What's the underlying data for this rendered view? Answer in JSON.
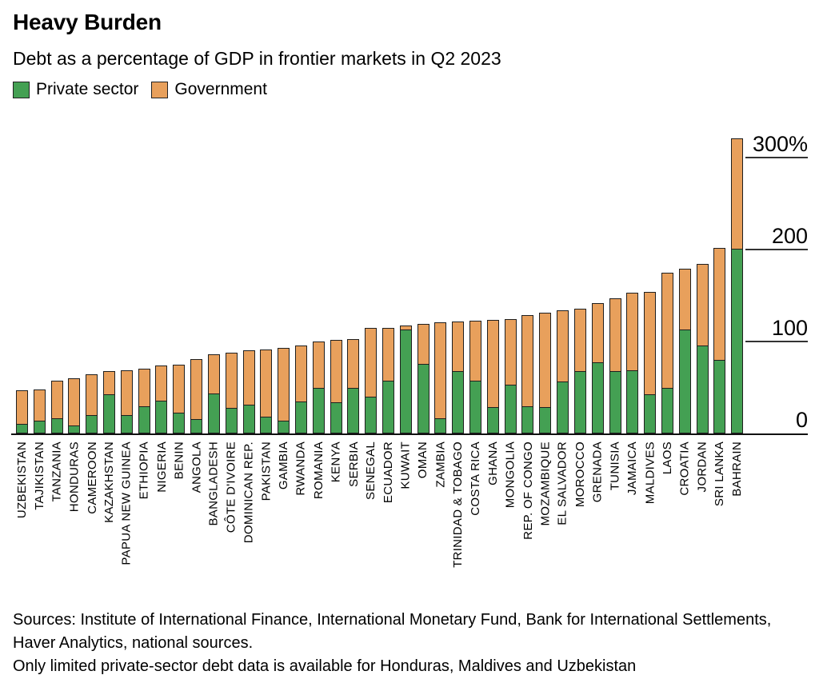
{
  "header": {
    "title": "Heavy Burden",
    "subtitle": "Debt as a percentage of GDP in frontier markets in Q2 2023"
  },
  "chart_data": {
    "type": "bar",
    "stacked": true,
    "unit": "percent of GDP",
    "title": "Heavy Burden",
    "subtitle": "Debt as a percentage of GDP in frontier markets in Q2 2023",
    "legend_position": "top-left",
    "grid": "right-segment-gridlines",
    "ylim": [
      0,
      320
    ],
    "yticks": [
      {
        "value": 300,
        "label": "300%"
      },
      {
        "value": 200,
        "label": "200"
      },
      {
        "value": 100,
        "label": "100"
      },
      {
        "value": 0,
        "label": "0"
      }
    ],
    "categories": [
      "UZBEKISTAN",
      "TAJIKISTAN",
      "TANZANIA",
      "HONDURAS",
      "CAMEROON",
      "KAZAKHSTAN",
      "PAPUA NEW GUINEA",
      "ETHIOPIA",
      "NIGERIA",
      "BENIN",
      "ANGOLA",
      "BANGLADESH",
      "CÔTE D'IVOIRE",
      "DOMINICAN REP.",
      "PAKISTAN",
      "GAMBIA",
      "RWANDA",
      "ROMANIA",
      "KENYA",
      "SERBIA",
      "SENEGAL",
      "ECUADOR",
      "KUWAIT",
      "OMAN",
      "ZAMBIA",
      "TRINIDAD & TOBAGO",
      "COSTA RICA",
      "GHANA",
      "MONGOLIA",
      "REP. OF CONGO",
      "MOZAMBIQUE",
      "EL SALVADOR",
      "MOROCCO",
      "GRENADA",
      "TUNISIA",
      "JAMAICA",
      "MALDIVES",
      "LAOS",
      "CROATIA",
      "JORDAN",
      "SRI LANKA",
      "BAHRAIN"
    ],
    "series": [
      {
        "name": "Private sector",
        "color": "#44A053",
        "values": [
          8,
          11,
          14,
          6,
          17,
          40,
          17,
          27,
          33,
          20,
          13,
          41,
          25,
          29,
          16,
          11,
          32,
          47,
          31,
          47,
          37,
          55,
          110,
          73,
          14,
          65,
          55,
          26,
          50,
          27,
          26,
          54,
          65,
          75,
          65,
          66,
          40,
          47,
          110,
          93,
          77,
          198
        ]
      },
      {
        "name": "Government",
        "color": "#E8A05C",
        "values": [
          36,
          34,
          41,
          51,
          45,
          25,
          49,
          41,
          38,
          52,
          65,
          42,
          60,
          59,
          73,
          79,
          61,
          50,
          68,
          53,
          75,
          57,
          5,
          43,
          104,
          54,
          65,
          95,
          72,
          99,
          103,
          77,
          68,
          64,
          79,
          84,
          111,
          125,
          66,
          89,
          122,
          120
        ]
      }
    ]
  },
  "footer": {
    "sources": "Sources: Institute of International Finance, International Monetary Fund, Bank for International Settlements, Haver Analytics, national sources.",
    "note": "Only limited private-sector debt data is available for Honduras, Maldives and Uzbekistan"
  }
}
